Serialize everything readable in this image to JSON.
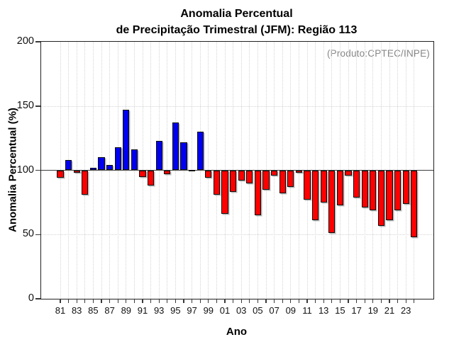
{
  "chart_data": {
    "type": "bar",
    "title_line1": "Anomalia Percentual",
    "title_line2": "de Precipitação Trimestral (JFM): Região 113",
    "annotation": "(Produto:CPTEC/INPE)",
    "xlabel": "Ano",
    "ylabel": "Anomalia Percentual (%)",
    "ylim": [
      0,
      200
    ],
    "yticks": [
      0,
      50,
      100,
      150,
      200
    ],
    "hgrid_at": [
      50,
      150
    ],
    "baseline": 100,
    "grid": true,
    "legend": "none",
    "colors": {
      "above_baseline": "#0000ee",
      "below_baseline": "#ff0000",
      "grid": "#d4d4d4",
      "annotation": "#878787"
    },
    "x_tick_labels": [
      "81",
      "83",
      "85",
      "87",
      "89",
      "91",
      "93",
      "95",
      "97",
      "99",
      "01",
      "03",
      "05",
      "07",
      "09",
      "11",
      "13",
      "15",
      "17",
      "19",
      "21",
      "23"
    ],
    "years": [
      1981,
      1982,
      1983,
      1984,
      1985,
      1986,
      1987,
      1988,
      1989,
      1990,
      1991,
      1992,
      1993,
      1994,
      1995,
      1996,
      1997,
      1998,
      1999,
      2000,
      2001,
      2002,
      2003,
      2004,
      2005,
      2006,
      2007,
      2008,
      2009,
      2010,
      2011,
      2012,
      2013,
      2014,
      2015,
      2016,
      2017,
      2018,
      2019,
      2020,
      2021,
      2022,
      2023,
      2024
    ],
    "values": [
      94,
      108,
      98,
      81,
      102,
      110,
      104,
      118,
      147,
      116,
      95,
      88,
      123,
      97,
      137,
      122,
      100,
      130,
      94,
      81,
      66,
      83,
      92,
      90,
      65,
      85,
      96,
      82,
      87,
      98,
      77,
      61,
      75,
      51,
      73,
      96,
      79,
      71,
      69,
      57,
      61,
      69,
      74,
      48
    ]
  }
}
